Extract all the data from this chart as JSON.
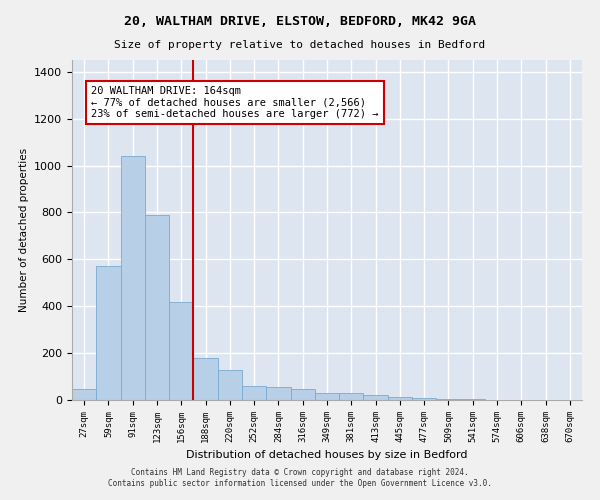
{
  "title_line1": "20, WALTHAM DRIVE, ELSTOW, BEDFORD, MK42 9GA",
  "title_line2": "Size of property relative to detached houses in Bedford",
  "xlabel": "Distribution of detached houses by size in Bedford",
  "ylabel": "Number of detached properties",
  "categories": [
    "27sqm",
    "59sqm",
    "91sqm",
    "123sqm",
    "156sqm",
    "188sqm",
    "220sqm",
    "252sqm",
    "284sqm",
    "316sqm",
    "349sqm",
    "381sqm",
    "413sqm",
    "445sqm",
    "477sqm",
    "509sqm",
    "541sqm",
    "574sqm",
    "606sqm",
    "638sqm",
    "670sqm"
  ],
  "values": [
    47,
    573,
    1040,
    790,
    420,
    178,
    128,
    60,
    57,
    47,
    30,
    28,
    20,
    13,
    10,
    5,
    3,
    2,
    1,
    1,
    0
  ],
  "bar_color": "#b8cfe8",
  "bar_edge_color": "#7aaad0",
  "vline_x": 4.5,
  "vline_color": "#cc0000",
  "annotation_text": "20 WALTHAM DRIVE: 164sqm\n← 77% of detached houses are smaller (2,566)\n23% of semi-detached houses are larger (772) →",
  "annotation_box_color": "#ffffff",
  "annotation_box_edge": "#cc0000",
  "ylim": [
    0,
    1450
  ],
  "yticks": [
    0,
    200,
    400,
    600,
    800,
    1000,
    1200,
    1400
  ],
  "bg_color": "#dde6f0",
  "grid_color": "#ffffff",
  "footer_line1": "Contains HM Land Registry data © Crown copyright and database right 2024.",
  "footer_line2": "Contains public sector information licensed under the Open Government Licence v3.0."
}
